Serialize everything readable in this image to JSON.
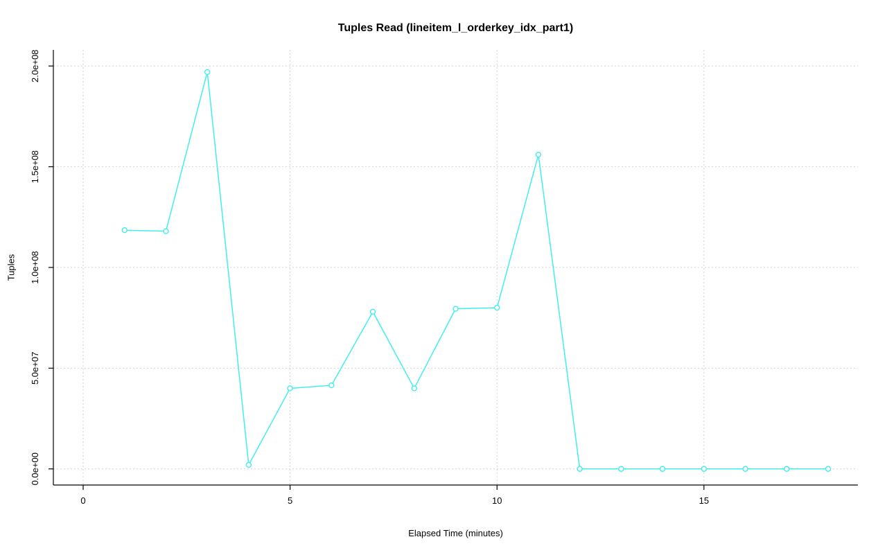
{
  "chart": {
    "title": "Tuples Read (lineitem_l_orderkey_idx_part1)",
    "xlabel": "Elapsed Time (minutes)",
    "ylabel": "Tuples"
  },
  "chart_data": {
    "type": "line",
    "title": "Tuples Read (lineitem_l_orderkey_idx_part1)",
    "xlabel": "Elapsed Time (minutes)",
    "ylabel": "Tuples",
    "x": [
      1,
      2,
      3,
      4,
      5,
      6,
      7,
      8,
      9,
      10,
      11,
      12,
      13,
      14,
      15,
      16,
      17,
      18
    ],
    "y": [
      118500000,
      118000000,
      197000000,
      2000000,
      40000000,
      41500000,
      78000000,
      40000000,
      79500000,
      80000000,
      156000000,
      0,
      0,
      0,
      0,
      0,
      0,
      0
    ],
    "xlim": [
      0,
      18
    ],
    "ylim": [
      0,
      200000000
    ],
    "x_ticks": [
      0,
      5,
      10,
      15
    ],
    "x_tick_labels": [
      "0",
      "5",
      "10",
      "15"
    ],
    "y_ticks": [
      0,
      50000000,
      100000000,
      150000000,
      200000000
    ],
    "y_tick_labels": [
      "0.0e+00",
      "5.0e+07",
      "1.0e+08",
      "1.5e+08",
      "2.0e+08"
    ],
    "grid": true,
    "legend": "none",
    "line_color": "#40EEEE",
    "marker": "open-circle",
    "marker_fill": "#ffffff",
    "grid_color": "#d2d2d2",
    "axis_color": "#000000"
  }
}
